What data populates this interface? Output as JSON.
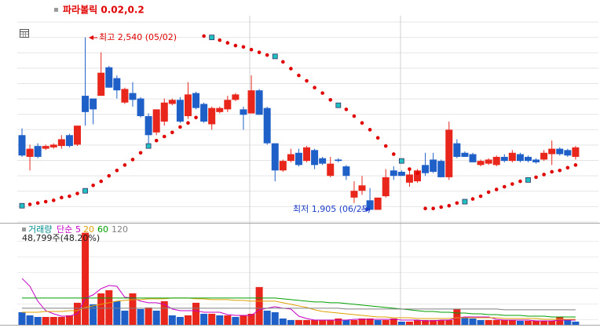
{
  "chart_data": [
    {
      "type": "candlestick",
      "up_color": "#e8261c",
      "down_color": "#1f5fc8",
      "ylim": [
        1860,
        2620
      ],
      "open": [
        2180,
        2100,
        2140,
        2130,
        2135,
        2140,
        2180,
        2145,
        2325,
        2315,
        2325,
        2430,
        2390,
        2300,
        2335,
        2315,
        2250,
        2190,
        2230,
        2295,
        2310,
        2250,
        2335,
        2295,
        2220,
        2265,
        2275,
        2310,
        2275,
        2260,
        2345,
        2280,
        2150,
        2050,
        2085,
        2115,
        2085,
        2125,
        2095,
        2030,
        2090,
        2065,
        1950,
        1975,
        1940,
        1905,
        1955,
        2050,
        2045,
        2005,
        2010,
        2070,
        2090,
        2085,
        2025,
        2150,
        2115,
        2110,
        2070,
        2075,
        2070,
        2100,
        2085,
        2110,
        2100,
        2090,
        2090,
        2110,
        2130,
        2125,
        2100
      ],
      "high": [
        2205,
        2145,
        2150,
        2145,
        2150,
        2180,
        2185,
        2215,
        2540,
        2315,
        2485,
        2435,
        2400,
        2355,
        2375,
        2320,
        2260,
        2275,
        2315,
        2315,
        2320,
        2375,
        2340,
        2300,
        2285,
        2285,
        2325,
        2335,
        2285,
        2400,
        2350,
        2285,
        2150,
        2090,
        2130,
        2130,
        2140,
        2130,
        2100,
        2100,
        2095,
        2070,
        2010,
        2030,
        1985,
        1950,
        2055,
        2065,
        2050,
        2050,
        2055,
        2115,
        2115,
        2090,
        2230,
        2165,
        2120,
        2115,
        2090,
        2095,
        2105,
        2110,
        2125,
        2115,
        2105,
        2095,
        2125,
        2160,
        2135,
        2130,
        2140
      ],
      "low": [
        2100,
        2050,
        2095,
        2125,
        2130,
        2130,
        2135,
        2140,
        2215,
        2220,
        2325,
        2355,
        2315,
        2295,
        2285,
        2245,
        2145,
        2180,
        2215,
        2290,
        2225,
        2240,
        2275,
        2225,
        2200,
        2260,
        2265,
        2305,
        2200,
        2260,
        2255,
        2145,
        2010,
        2045,
        2080,
        2065,
        2080,
        2055,
        2070,
        2025,
        2080,
        2015,
        1930,
        1960,
        1905,
        1910,
        1950,
        2015,
        2030,
        1990,
        2005,
        2030,
        2040,
        2025,
        2015,
        2095,
        2100,
        2080,
        2065,
        2070,
        2065,
        2080,
        2080,
        2080,
        2080,
        2075,
        2085,
        2070,
        2105,
        2100,
        2090
      ],
      "close": [
        2105,
        2130,
        2100,
        2140,
        2145,
        2165,
        2140,
        2215,
        2265,
        2275,
        2410,
        2355,
        2345,
        2350,
        2310,
        2250,
        2180,
        2275,
        2300,
        2310,
        2230,
        2330,
        2280,
        2230,
        2280,
        2280,
        2310,
        2330,
        2255,
        2345,
        2255,
        2150,
        2050,
        2085,
        2110,
        2070,
        2135,
        2070,
        2075,
        2075,
        2085,
        2030,
        1975,
        1995,
        1905,
        1950,
        2025,
        2030,
        2030,
        2035,
        2050,
        2040,
        2045,
        2025,
        2200,
        2100,
        2100,
        2080,
        2085,
        2090,
        2100,
        2085,
        2115,
        2085,
        2085,
        2080,
        2115,
        2130,
        2110,
        2105,
        2135
      ],
      "sar": {
        "name": "파라볼릭 0.02,0.2",
        "color": "#e00000",
        "values": [
          1920,
          1925,
          1930,
          1935,
          1940,
          1950,
          1955,
          1965,
          1975,
          1995,
          2010,
          2030,
          2050,
          2070,
          2090,
          2115,
          2140,
          2160,
          2175,
          2190,
          2210,
          2225,
          2245,
          2545,
          2540,
          2530,
          2520,
          2510,
          2505,
          2495,
          2485,
          2475,
          2470,
          2450,
          2425,
          2400,
          2380,
          2355,
          2335,
          2310,
          2290,
          2275,
          2250,
          2225,
          2200,
          2170,
          2140,
          2110,
          2085,
          2055,
          2040,
          1910,
          1910,
          1915,
          1920,
          1930,
          1935,
          1945,
          1955,
          1970,
          1980,
          1990,
          2000,
          2010,
          2015,
          2025,
          2035,
          2045,
          2050,
          2060,
          2070
        ]
      },
      "annotations": [
        {
          "text": "최고 2,540 (05/02)",
          "color": "#e00000"
        },
        {
          "text": "최저 1,905 (06/25)",
          "color": "#1f3fc8"
        }
      ]
    },
    {
      "type": "bar",
      "label": "거래량",
      "ma_type": "단순",
      "value_label": "48,799주(48.20%)",
      "up_color": "#e8261c",
      "down_color": "#1f5fc8",
      "ylim": [
        0,
        1520000
      ],
      "values": [
        192000,
        144000,
        120000,
        120000,
        120000,
        120000,
        144000,
        336000,
        1404000,
        312000,
        480000,
        528000,
        360000,
        216000,
        480000,
        240000,
        264000,
        216000,
        360000,
        144000,
        120000,
        144000,
        336000,
        168000,
        168000,
        144000,
        144000,
        120000,
        144000,
        168000,
        576000,
        216000,
        192000,
        96000,
        72000,
        72000,
        72000,
        72000,
        72000,
        72000,
        96000,
        72000,
        72000,
        96000,
        96000,
        72000,
        72000,
        96000,
        48000,
        48000,
        72000,
        72000,
        72000,
        72000,
        72000,
        240000,
        120000,
        96000,
        72000,
        72000,
        72000,
        72000,
        72000,
        60000,
        60000,
        60000,
        60000,
        60000,
        120000,
        72000,
        48799
      ],
      "series": [
        {
          "name": "5",
          "color": "#c800c8",
          "values": [
            708000,
            588000,
            360000,
            216000,
            168000,
            132000,
            132000,
            168000,
            408000,
            456000,
            552000,
            600000,
            588000,
            420000,
            408000,
            360000,
            336000,
            336000,
            312000,
            240000,
            216000,
            216000,
            216000,
            192000,
            192000,
            192000,
            156000,
            144000,
            144000,
            144000,
            228000,
            252000,
            276000,
            252000,
            240000,
            132000,
            96000,
            72000,
            72000,
            72000,
            72000,
            72000,
            84000,
            84000,
            84000,
            84000,
            84000,
            84000,
            72000,
            72000,
            72000,
            60000,
            60000,
            72000,
            72000,
            108000,
            120000,
            120000,
            120000,
            120000,
            84000,
            72000,
            72000,
            72000,
            72000,
            60000,
            60000,
            60000,
            72000,
            72000,
            72000
          ]
        },
        {
          "name": "20",
          "color": "#e0a000",
          "values": [
            192000,
            192000,
            192000,
            204000,
            204000,
            204000,
            216000,
            216000,
            264000,
            288000,
            312000,
            336000,
            360000,
            372000,
            384000,
            384000,
            396000,
            396000,
            396000,
            408000,
            408000,
            408000,
            396000,
            396000,
            384000,
            384000,
            384000,
            372000,
            372000,
            360000,
            360000,
            360000,
            360000,
            336000,
            312000,
            288000,
            264000,
            228000,
            204000,
            192000,
            180000,
            168000,
            156000,
            144000,
            132000,
            120000,
            120000,
            108000,
            108000,
            108000,
            96000,
            96000,
            96000,
            96000,
            96000,
            108000,
            108000,
            108000,
            108000,
            108000,
            108000,
            96000,
            96000,
            96000,
            96000,
            96000,
            84000,
            84000,
            84000,
            84000,
            84000
          ]
        },
        {
          "name": "60",
          "color": "#00a000",
          "values": [
            408000,
            408000,
            408000,
            408000,
            408000,
            408000,
            408000,
            408000,
            408000,
            408000,
            408000,
            408000,
            408000,
            408000,
            408000,
            408000,
            408000,
            408000,
            408000,
            408000,
            408000,
            408000,
            408000,
            408000,
            408000,
            408000,
            408000,
            408000,
            408000,
            408000,
            408000,
            408000,
            408000,
            396000,
            384000,
            372000,
            360000,
            348000,
            348000,
            336000,
            336000,
            324000,
            312000,
            300000,
            288000,
            276000,
            264000,
            252000,
            240000,
            228000,
            216000,
            204000,
            204000,
            192000,
            192000,
            180000,
            180000,
            168000,
            168000,
            156000,
            156000,
            144000,
            144000,
            144000,
            132000,
            132000,
            132000,
            120000,
            120000,
            120000,
            120000
          ]
        },
        {
          "name": "120",
          "color": "#808080",
          "values": [
            252000,
            252000,
            252000,
            252000,
            252000,
            252000,
            252000,
            252000,
            252000,
            252000,
            252000,
            252000,
            252000,
            252000,
            252000,
            252000,
            252000,
            252000,
            252000,
            252000,
            252000,
            252000,
            252000,
            252000,
            252000,
            252000,
            252000,
            252000,
            252000,
            252000,
            252000,
            252000,
            252000,
            252000,
            252000,
            252000,
            252000,
            252000,
            252000,
            252000,
            252000,
            240000,
            240000,
            240000,
            240000,
            240000,
            240000,
            240000,
            240000,
            240000,
            240000,
            240000,
            240000,
            240000,
            240000,
            240000,
            240000,
            240000,
            240000,
            240000,
            240000,
            228000,
            228000,
            228000,
            228000,
            228000,
            228000,
            228000,
            228000,
            228000,
            228000
          ]
        }
      ]
    }
  ]
}
